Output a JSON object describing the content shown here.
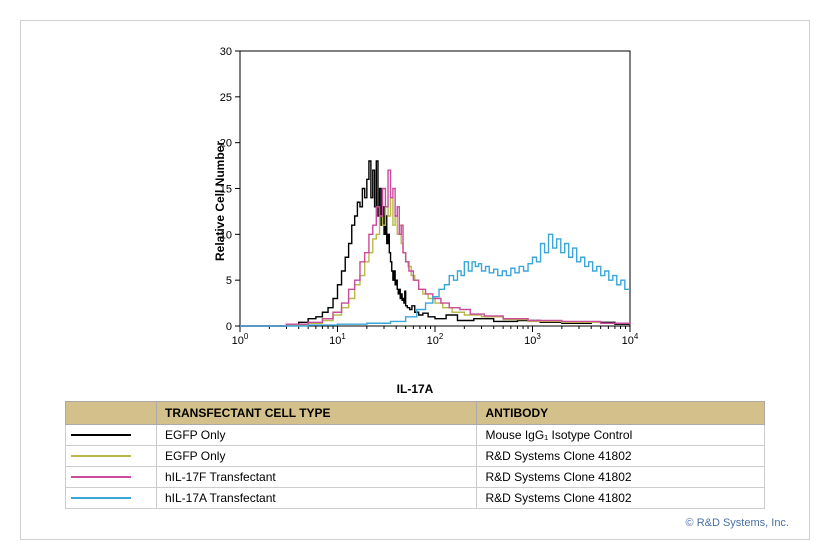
{
  "chart": {
    "type": "flow-cytometry-histogram",
    "x_label": "IL-17A",
    "y_label": "Relative Cell Number",
    "x_scale": "log",
    "x_ticks": [
      1,
      10,
      100,
      1000,
      10000
    ],
    "x_tick_labels": [
      "10⁰",
      "10¹",
      "10²",
      "10³",
      "10⁴"
    ],
    "y_scale": "linear",
    "ylim": [
      0,
      30
    ],
    "y_ticks": [
      0,
      5,
      10,
      15,
      20,
      25,
      30
    ],
    "plot_bg": "#ffffff",
    "axis_color": "#000000",
    "axis_fontsize": 11,
    "label_fontsize": 12,
    "line_width": 1.4,
    "series": [
      {
        "name": "egfp-isotype",
        "color": "#000000",
        "points": [
          [
            1,
            0
          ],
          [
            2,
            0
          ],
          [
            3,
            0.2
          ],
          [
            4,
            0.4
          ],
          [
            5,
            0.8
          ],
          [
            6,
            1.0
          ],
          [
            7,
            1.5
          ],
          [
            8,
            2.0
          ],
          [
            9,
            3.0
          ],
          [
            10,
            4.5
          ],
          [
            11,
            6
          ],
          [
            12,
            7.5
          ],
          [
            13,
            9
          ],
          [
            14,
            11
          ],
          [
            15,
            12
          ],
          [
            16,
            13.5
          ],
          [
            17,
            13
          ],
          [
            18,
            15
          ],
          [
            19,
            14
          ],
          [
            20,
            16
          ],
          [
            21,
            18
          ],
          [
            22,
            14
          ],
          [
            23,
            17
          ],
          [
            24,
            13
          ],
          [
            25,
            18
          ],
          [
            26,
            12
          ],
          [
            27,
            15
          ],
          [
            28,
            11
          ],
          [
            29,
            13
          ],
          [
            30,
            10
          ],
          [
            31,
            12
          ],
          [
            32,
            9
          ],
          [
            33,
            10
          ],
          [
            34,
            8
          ],
          [
            35,
            7
          ],
          [
            36,
            6
          ],
          [
            37,
            5
          ],
          [
            38,
            6
          ],
          [
            39,
            4.5
          ],
          [
            40,
            5
          ],
          [
            41,
            4
          ],
          [
            42,
            3.5
          ],
          [
            43,
            4
          ],
          [
            44,
            3
          ],
          [
            45,
            3.5
          ],
          [
            46,
            2.8
          ],
          [
            47,
            3
          ],
          [
            48,
            2.5
          ],
          [
            49,
            3.8
          ],
          [
            50,
            2.2
          ],
          [
            52,
            2
          ],
          [
            55,
            1.8
          ],
          [
            58,
            2.2
          ],
          [
            62,
            1.5
          ],
          [
            68,
            1.2
          ],
          [
            75,
            1.4
          ],
          [
            85,
            1
          ],
          [
            100,
            0.8
          ],
          [
            130,
            1.2
          ],
          [
            170,
            0.6
          ],
          [
            250,
            0.8
          ],
          [
            400,
            0.5
          ],
          [
            700,
            0.6
          ],
          [
            1200,
            0.4
          ],
          [
            2000,
            0.3
          ],
          [
            4000,
            0.4
          ],
          [
            7000,
            0.2
          ],
          [
            10000,
            0.2
          ]
        ]
      },
      {
        "name": "egfp-41802",
        "color": "#b9b94a",
        "points": [
          [
            1,
            0
          ],
          [
            3,
            0.1
          ],
          [
            5,
            0.3
          ],
          [
            7,
            0.6
          ],
          [
            9,
            1.2
          ],
          [
            11,
            2
          ],
          [
            13,
            3
          ],
          [
            15,
            4.5
          ],
          [
            17,
            5.5
          ],
          [
            19,
            7
          ],
          [
            21,
            8
          ],
          [
            23,
            9.5
          ],
          [
            25,
            10
          ],
          [
            27,
            12
          ],
          [
            29,
            11
          ],
          [
            31,
            13
          ],
          [
            33,
            12
          ],
          [
            35,
            14
          ],
          [
            37,
            11
          ],
          [
            39,
            12
          ],
          [
            41,
            10
          ],
          [
            43,
            11
          ],
          [
            45,
            9
          ],
          [
            47,
            8
          ],
          [
            50,
            7
          ],
          [
            53,
            6.5
          ],
          [
            57,
            5.5
          ],
          [
            62,
            5
          ],
          [
            68,
            4
          ],
          [
            75,
            3.5
          ],
          [
            85,
            3
          ],
          [
            100,
            2.5
          ],
          [
            120,
            2
          ],
          [
            150,
            1.5
          ],
          [
            200,
            1.2
          ],
          [
            300,
            1
          ],
          [
            500,
            0.7
          ],
          [
            900,
            0.5
          ],
          [
            2000,
            0.4
          ],
          [
            5000,
            0.3
          ],
          [
            10000,
            0.2
          ]
        ]
      },
      {
        "name": "hil17f-41802",
        "color": "#c94b9b",
        "points": [
          [
            1,
            0
          ],
          [
            3,
            0.2
          ],
          [
            5,
            0.4
          ],
          [
            7,
            0.8
          ],
          [
            9,
            1.5
          ],
          [
            11,
            2.5
          ],
          [
            13,
            4
          ],
          [
            15,
            5
          ],
          [
            17,
            7
          ],
          [
            19,
            8
          ],
          [
            21,
            10
          ],
          [
            23,
            11
          ],
          [
            25,
            13
          ],
          [
            27,
            12
          ],
          [
            29,
            15
          ],
          [
            31,
            13
          ],
          [
            33,
            17
          ],
          [
            35,
            14
          ],
          [
            37,
            15
          ],
          [
            39,
            12
          ],
          [
            41,
            13
          ],
          [
            43,
            10
          ],
          [
            45,
            11
          ],
          [
            47,
            8
          ],
          [
            50,
            7
          ],
          [
            54,
            6
          ],
          [
            60,
            5
          ],
          [
            68,
            4
          ],
          [
            80,
            3.5
          ],
          [
            95,
            3
          ],
          [
            115,
            2.5
          ],
          [
            140,
            2
          ],
          [
            180,
            1.8
          ],
          [
            230,
            1.3
          ],
          [
            320,
            1.1
          ],
          [
            500,
            0.8
          ],
          [
            900,
            0.6
          ],
          [
            2000,
            0.5
          ],
          [
            5000,
            0.3
          ],
          [
            10000,
            0.2
          ]
        ]
      },
      {
        "name": "hil17a-41802",
        "color": "#3aa6d9",
        "points": [
          [
            1,
            0
          ],
          [
            5,
            0.1
          ],
          [
            10,
            0.2
          ],
          [
            20,
            0.3
          ],
          [
            35,
            0.5
          ],
          [
            50,
            1
          ],
          [
            65,
            1.8
          ],
          [
            80,
            2.5
          ],
          [
            95,
            3.2
          ],
          [
            110,
            4
          ],
          [
            125,
            4.5
          ],
          [
            140,
            5.5
          ],
          [
            155,
            5
          ],
          [
            170,
            6
          ],
          [
            185,
            5.5
          ],
          [
            200,
            7
          ],
          [
            220,
            6
          ],
          [
            240,
            7
          ],
          [
            260,
            6.5
          ],
          [
            280,
            6.8
          ],
          [
            300,
            6
          ],
          [
            330,
            6.5
          ],
          [
            360,
            5.8
          ],
          [
            400,
            6.2
          ],
          [
            440,
            5.5
          ],
          [
            490,
            6
          ],
          [
            540,
            5.5
          ],
          [
            600,
            6.3
          ],
          [
            660,
            5.8
          ],
          [
            730,
            6.5
          ],
          [
            810,
            6
          ],
          [
            900,
            6.8
          ],
          [
            1000,
            7.5
          ],
          [
            1100,
            7
          ],
          [
            1210,
            9
          ],
          [
            1330,
            8
          ],
          [
            1460,
            10
          ],
          [
            1610,
            8.5
          ],
          [
            1770,
            9.5
          ],
          [
            1950,
            8
          ],
          [
            2140,
            9
          ],
          [
            2350,
            7.5
          ],
          [
            2580,
            8.5
          ],
          [
            2840,
            7
          ],
          [
            3120,
            7.5
          ],
          [
            3430,
            6.5
          ],
          [
            3770,
            7
          ],
          [
            4140,
            6
          ],
          [
            4560,
            6.5
          ],
          [
            5010,
            5.5
          ],
          [
            5510,
            6
          ],
          [
            6060,
            5
          ],
          [
            6660,
            5.5
          ],
          [
            7320,
            4.5
          ],
          [
            8050,
            5
          ],
          [
            8850,
            4
          ],
          [
            10000,
            4
          ]
        ]
      }
    ]
  },
  "legend_table": {
    "headers": [
      "TRANSFECTANT CELL TYPE",
      "ANTIBODY"
    ],
    "header_bg": "#d4c08a",
    "rows": [
      {
        "color": "#000000",
        "cell_type": "EGFP Only",
        "antibody": "Mouse IgG₁ Isotype Control"
      },
      {
        "color": "#b9b94a",
        "cell_type": "EGFP Only",
        "antibody": "R&D Systems Clone 41802"
      },
      {
        "color": "#c94b9b",
        "cell_type": "hIL-17F Transfectant",
        "antibody": "R&D Systems Clone 41802"
      },
      {
        "color": "#3aa6d9",
        "cell_type": "hIL-17A Transfectant",
        "antibody": "R&D Systems Clone 41802"
      }
    ]
  },
  "credit": "© R&D Systems, Inc."
}
